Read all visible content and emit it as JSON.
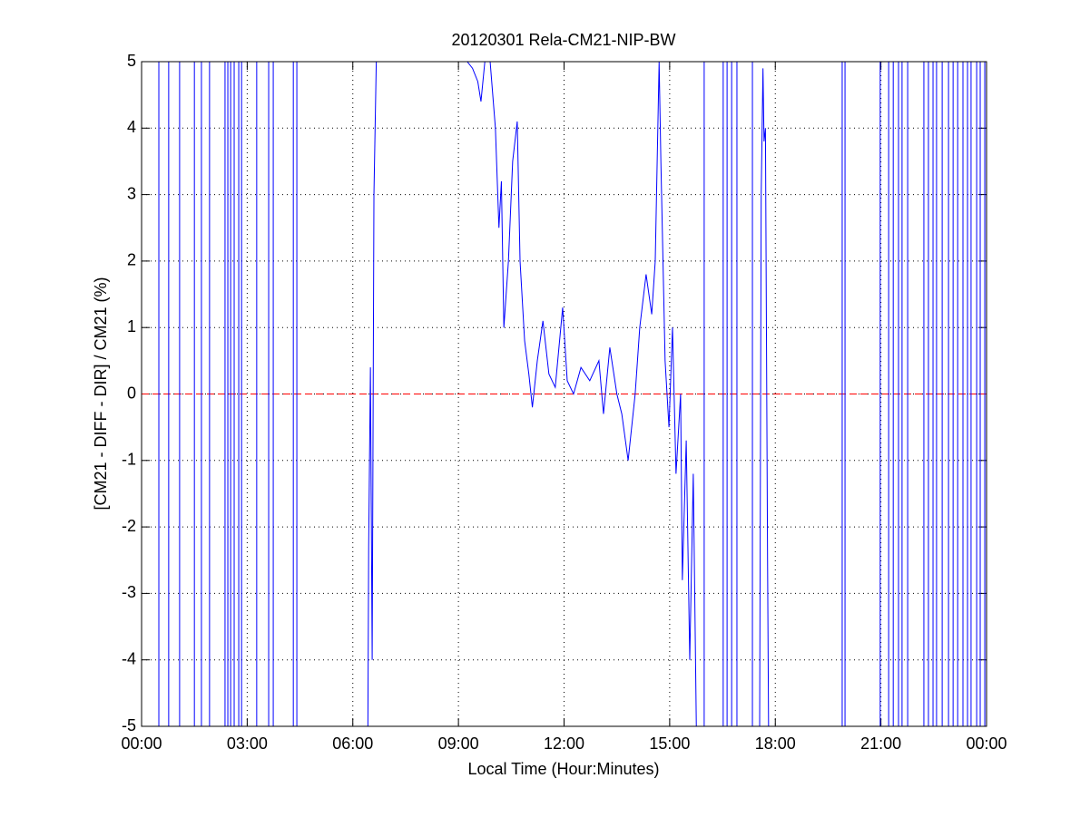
{
  "chart_data": {
    "type": "line",
    "title": "20120301 Rela-CM21-NIP-BW",
    "xlabel": "Local Time (Hour:Minutes)",
    "ylabel": "[CM21 - DIFF - DIR] / CM21 (%)",
    "xlim": [
      0,
      24
    ],
    "ylim": [
      -5,
      5
    ],
    "xticks": [
      {
        "value": 0,
        "label": "00:00"
      },
      {
        "value": 3,
        "label": "03:00"
      },
      {
        "value": 6,
        "label": "06:00"
      },
      {
        "value": 9,
        "label": "09:00"
      },
      {
        "value": 12,
        "label": "12:00"
      },
      {
        "value": 15,
        "label": "15:00"
      },
      {
        "value": 18,
        "label": "18:00"
      },
      {
        "value": 21,
        "label": "21:00"
      },
      {
        "value": 24,
        "label": "00:00"
      }
    ],
    "yticks": [
      -5,
      -4,
      -3,
      -2,
      -1,
      0,
      1,
      2,
      3,
      4,
      5
    ],
    "grid": true,
    "hline": {
      "value": 0,
      "color": "#ff0000"
    },
    "series": [
      {
        "color": "#0000ff",
        "x": [
          0.49,
          0.49,
          0.49,
          0.77,
          0.77,
          0.77,
          1.08,
          1.08,
          1.08,
          1.5,
          1.5,
          1.5,
          1.7,
          1.7,
          1.7,
          1.93,
          1.93,
          1.93,
          2.37,
          2.37,
          2.37,
          2.45,
          2.45,
          2.45,
          2.53,
          2.53,
          2.53,
          2.63,
          2.63,
          2.63,
          2.76,
          2.76,
          2.76,
          2.84,
          2.84,
          2.84,
          3.27,
          3.27,
          3.27,
          3.61,
          3.61,
          3.61,
          3.74,
          3.74,
          3.74,
          4.31,
          4.31,
          4.31,
          4.41,
          4.41,
          4.41,
          6.42,
          6.45,
          6.5,
          6.55,
          6.6,
          6.65,
          6.7,
          6.71,
          9.25,
          9.4,
          9.55,
          9.64,
          9.75,
          9.9,
          10.05,
          10.15,
          10.22,
          10.29,
          10.42,
          10.54,
          10.67,
          10.75,
          10.88,
          11.0,
          11.1,
          11.24,
          11.4,
          11.57,
          11.75,
          11.96,
          12.09,
          12.27,
          12.48,
          12.73,
          12.99,
          13.12,
          13.3,
          13.5,
          13.64,
          13.82,
          14.02,
          14.15,
          14.33,
          14.49,
          14.59,
          14.7,
          14.75,
          14.87,
          14.98,
          15.08,
          15.18,
          15.31,
          15.36,
          15.47,
          15.57,
          15.67,
          15.78,
          15.79,
          15.98,
          15.98,
          15.98,
          16.52,
          16.52,
          16.52,
          16.63,
          16.63,
          16.63,
          16.76,
          16.76,
          16.76,
          16.91,
          16.91,
          16.91,
          17.35,
          17.35,
          17.35,
          17.55,
          17.6,
          17.65,
          17.68,
          17.72,
          17.78,
          17.82,
          17.83,
          19.9,
          19.9,
          19.9,
          19.98,
          19.98,
          19.98,
          20.98,
          20.98,
          20.98,
          21.22,
          21.22,
          21.22,
          21.35,
          21.35,
          21.35,
          21.5,
          21.5,
          21.5,
          21.6,
          21.6,
          21.6,
          21.76,
          21.76,
          21.76,
          22.22,
          22.22,
          22.22,
          22.35,
          22.35,
          22.35,
          22.48,
          22.48,
          22.48,
          22.58,
          22.58,
          22.58,
          22.74,
          22.74,
          22.74,
          22.92,
          22.92,
          22.92,
          23.05,
          23.05,
          23.05,
          23.18,
          23.18,
          23.18,
          23.33,
          23.33,
          23.33,
          23.46,
          23.46,
          23.46,
          23.56,
          23.56,
          23.56,
          23.72,
          23.72,
          23.72,
          23.82,
          23.82,
          23.82,
          23.95,
          23.95,
          23.95
        ],
        "values": [
          6,
          -6,
          null,
          6,
          -6,
          null,
          6,
          -6,
          null,
          6,
          -6,
          null,
          6,
          -6,
          null,
          6,
          -6,
          null,
          6,
          -6,
          null,
          6,
          -6,
          null,
          6,
          -6,
          null,
          6,
          -6,
          null,
          6,
          -6,
          null,
          6,
          -6,
          null,
          6,
          -6,
          null,
          6,
          -6,
          null,
          6,
          -6,
          null,
          6,
          -6,
          null,
          6,
          -6,
          null,
          -6,
          -2.3,
          0.4,
          -4,
          3,
          4.5,
          6,
          null,
          5,
          4.9,
          4.7,
          4.4,
          5,
          5,
          4,
          2.5,
          3.2,
          1,
          2,
          3.5,
          4.1,
          2,
          0.8,
          0.3,
          -0.2,
          0.5,
          1.1,
          0.3,
          0.1,
          1.3,
          0.2,
          0,
          0.4,
          0.2,
          0.5,
          -0.3,
          0.7,
          0,
          -0.3,
          -1,
          0,
          1,
          1.8,
          1.2,
          2,
          5,
          3.5,
          0.5,
          -0.5,
          1,
          -1.2,
          0,
          -2.8,
          -0.7,
          -4,
          -1.2,
          -6,
          null,
          6,
          -6,
          null,
          6,
          -6,
          null,
          6,
          -6,
          null,
          6,
          -6,
          null,
          6,
          -6,
          null,
          6,
          -6,
          null,
          -6,
          3,
          4.9,
          3.8,
          4,
          -2.5,
          -6,
          null,
          6,
          -6,
          null,
          6,
          -6,
          null,
          6,
          -6,
          null,
          6,
          -6,
          null,
          6,
          -6,
          null,
          6,
          -6,
          null,
          6,
          -6,
          null,
          6,
          -6,
          null,
          6,
          -6,
          null,
          6,
          -6,
          null,
          6,
          -6,
          null,
          6,
          -6,
          null,
          6,
          -6,
          null,
          6,
          -6,
          null,
          6,
          -6,
          null,
          6,
          -6,
          null,
          6,
          -6,
          null,
          6,
          -6,
          null,
          6,
          -6,
          null,
          6,
          -6,
          null,
          6,
          -6,
          null,
          6,
          -6,
          null
        ]
      }
    ]
  }
}
